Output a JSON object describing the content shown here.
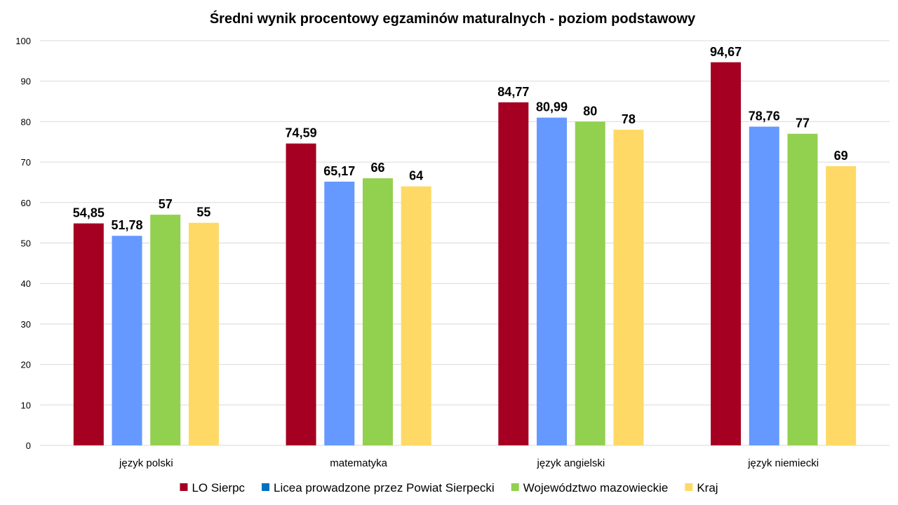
{
  "chart_data": {
    "type": "bar",
    "title": "Średni wynik procentowy egzaminów maturalnych - poziom podstawowy",
    "categories": [
      "język polski",
      "matematyka",
      "język angielski",
      "język niemiecki"
    ],
    "series": [
      {
        "name": "LO Sierpc",
        "color": "#a50021",
        "values": [
          54.85,
          74.59,
          84.77,
          94.67
        ],
        "labels": [
          "54,85",
          "74,59",
          "84,77",
          "94,67"
        ]
      },
      {
        "name": "Licea prowadzone przez Powiat Sierpecki",
        "color": "#6699ff",
        "legend_color": "#0070c0",
        "values": [
          51.78,
          65.17,
          80.99,
          78.76
        ],
        "labels": [
          "51,78",
          "65,17",
          "80,99",
          "78,76"
        ]
      },
      {
        "name": "Województwo mazowieckie",
        "color": "#92d050",
        "values": [
          57,
          66,
          80,
          77
        ],
        "labels": [
          "57",
          "66",
          "80",
          "77"
        ]
      },
      {
        "name": "Kraj",
        "color": "#ffd966",
        "values": [
          55,
          64,
          78,
          69
        ],
        "labels": [
          "55",
          "64",
          "78",
          "69"
        ]
      }
    ],
    "ylim": [
      0,
      100
    ],
    "yticks": [
      0,
      10,
      20,
      30,
      40,
      50,
      60,
      70,
      80,
      90,
      100
    ],
    "grid": true,
    "legend_position": "bottom",
    "xlabel": "",
    "ylabel": ""
  }
}
